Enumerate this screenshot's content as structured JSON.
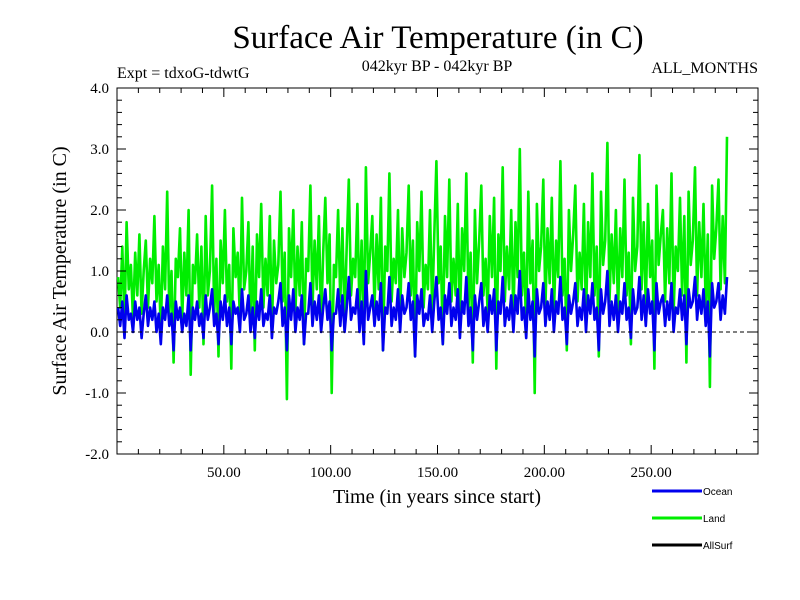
{
  "chart_data": {
    "type": "line",
    "title": "Surface Air Temperature (in C)",
    "subtitle": "042kyr BP - 042kyr BP",
    "left_annotation": "Expt = tdxoG-tdwtG",
    "right_annotation": "ALL_MONTHS",
    "xlabel": "Time (in years since start)",
    "ylabel": "Surface Air Temperature (in C)",
    "xlim": [
      0,
      300
    ],
    "ylim": [
      -2.0,
      4.0
    ],
    "x_ticks": [
      50,
      100,
      150,
      200,
      250
    ],
    "x_tick_labels": [
      "50.00",
      "100.00",
      "150.00",
      "200.00",
      "250.00"
    ],
    "y_ticks": [
      -2,
      -1,
      0,
      1,
      2,
      3,
      4
    ],
    "y_tick_labels": [
      "-2.0",
      "-1.0",
      "0.0",
      "1.0",
      "2.0",
      "3.0",
      "4.0"
    ],
    "zero_line": true,
    "legend_position": "bottom-right",
    "series": [
      {
        "name": "Land",
        "color": "#00ee00",
        "draw_order": 1,
        "x_start": 0.5,
        "x_step": 1.0,
        "trend": {
          "start": 0.75,
          "end": 1.3
        },
        "approx_range": [
          -1.1,
          3.25
        ],
        "values": [
          0.9,
          0.4,
          1.4,
          0.1,
          1.8,
          0.7,
          1.1,
          0.2,
          1.3,
          0.6,
          1.6,
          0.3,
          1.0,
          1.5,
          0.4,
          1.2,
          0.8,
          1.9,
          0.5,
          1.1,
          0.0,
          1.4,
          0.7,
          2.3,
          0.3,
          1.0,
          -0.5,
          1.2,
          0.9,
          1.7,
          0.2,
          1.3,
          0.6,
          2.0,
          -0.7,
          1.1,
          0.8,
          1.6,
          0.4,
          1.4,
          -0.2,
          1.9,
          0.6,
          1.0,
          2.4,
          0.3,
          1.2,
          -0.4,
          1.5,
          0.8,
          2.0,
          0.5,
          1.1,
          -0.6,
          1.7,
          0.9,
          1.3,
          0.2,
          2.2,
          0.7,
          1.0,
          1.8,
          0.1,
          1.4,
          -0.3,
          1.6,
          0.9,
          2.1,
          0.4,
          1.2,
          0.6,
          1.9,
          0.0,
          1.5,
          0.8,
          1.1,
          2.3,
          0.5,
          1.3,
          -1.1,
          1.7,
          0.9,
          2.0,
          0.3,
          1.4,
          0.6,
          1.8,
          -0.2,
          1.2,
          1.0,
          2.4,
          0.4,
          1.5,
          0.7,
          1.9,
          0.1,
          1.3,
          2.2,
          0.8,
          1.6,
          -1.0,
          1.1,
          0.9,
          2.0,
          0.5,
          1.7,
          0.2,
          1.4,
          2.5,
          0.6,
          1.2,
          0.9,
          2.1,
          0.3,
          1.5,
          0.0,
          2.7,
          0.8,
          1.3,
          1.9,
          0.4,
          1.6,
          0.7,
          2.2,
          -0.3,
          1.4,
          1.0,
          2.6,
          0.5,
          1.2,
          0.8,
          2.0,
          0.2,
          1.7,
          0.9,
          1.3,
          2.4,
          0.6,
          1.5,
          -0.4,
          1.8,
          1.0,
          2.3,
          0.4,
          1.1,
          0.7,
          2.0,
          0.3,
          1.6,
          2.8,
          0.8,
          1.4,
          -0.2,
          1.9,
          0.9,
          2.5,
          0.5,
          1.2,
          0.6,
          2.1,
          0.1,
          1.7,
          1.0,
          2.6,
          0.4,
          1.3,
          -0.5,
          2.0,
          0.8,
          1.5,
          2.4,
          0.6,
          1.2,
          0.3,
          1.9,
          0.9,
          2.2,
          -0.6,
          1.6,
          1.0,
          2.7,
          0.5,
          1.4,
          0.7,
          2.0,
          0.2,
          1.8,
          0.9,
          3.0,
          0.6,
          1.3,
          0.0,
          2.3,
          0.8,
          1.5,
          -1.0,
          2.1,
          1.0,
          1.4,
          2.5,
          0.4,
          1.7,
          0.8,
          2.2,
          0.3,
          1.5,
          0.9,
          2.8,
          0.6,
          1.2,
          -0.3,
          2.0,
          1.0,
          1.6,
          2.4,
          0.5,
          1.3,
          0.7,
          2.1,
          0.2,
          1.8,
          0.9,
          2.6,
          0.6,
          1.4,
          -0.4,
          2.3,
          1.1,
          1.5,
          3.1,
          0.5,
          1.6,
          0.8,
          2.0,
          0.3,
          1.7,
          0.9,
          2.5,
          0.6,
          1.3,
          -0.2,
          2.2,
          1.0,
          1.4,
          2.9,
          0.7,
          1.8,
          0.4,
          2.1,
          0.9,
          1.5,
          -0.6,
          2.4,
          1.1,
          1.6,
          2.0,
          0.5,
          1.7,
          0.8,
          2.6,
          0.3,
          1.4,
          1.0,
          2.2,
          0.6,
          1.9,
          -0.5,
          2.3,
          1.1,
          1.5,
          2.7,
          0.6,
          1.8,
          0.9,
          2.1,
          0.4,
          1.6,
          -0.9,
          2.4,
          1.2,
          1.7,
          2.5,
          0.7,
          1.9,
          0.8,
          3.2
        ]
      },
      {
        "name": "Ocean",
        "color": "#0000ee",
        "draw_order": 2,
        "x_start": 0.5,
        "x_step": 1.0,
        "trend": {
          "start": 0.3,
          "end": 0.45
        },
        "approx_range": [
          -0.45,
          1.05
        ],
        "values": [
          0.4,
          0.1,
          0.5,
          -0.1,
          0.6,
          0.2,
          0.3,
          0.0,
          0.5,
          0.2,
          0.4,
          -0.1,
          0.3,
          0.6,
          0.1,
          0.4,
          0.2,
          0.5,
          0.0,
          0.3,
          -0.2,
          0.4,
          0.2,
          0.6,
          0.1,
          0.3,
          -0.3,
          0.5,
          0.2,
          0.4,
          0.0,
          0.3,
          0.1,
          0.6,
          -0.3,
          0.4,
          0.2,
          0.5,
          0.1,
          0.3,
          -0.1,
          0.6,
          0.2,
          0.4,
          0.7,
          0.1,
          0.3,
          -0.2,
          0.5,
          0.2,
          0.6,
          0.1,
          0.4,
          -0.2,
          0.5,
          0.3,
          0.4,
          0.0,
          0.7,
          0.2,
          0.3,
          0.6,
          0.0,
          0.4,
          -0.1,
          0.5,
          0.2,
          0.7,
          0.1,
          0.3,
          0.2,
          0.6,
          -0.1,
          0.4,
          0.3,
          0.5,
          0.8,
          0.1,
          0.4,
          -0.3,
          0.6,
          0.2,
          0.7,
          0.0,
          0.4,
          0.2,
          0.6,
          -0.2,
          0.3,
          0.3,
          0.8,
          0.1,
          0.5,
          0.2,
          0.6,
          0.0,
          0.4,
          0.7,
          0.2,
          0.5,
          -0.3,
          0.3,
          0.3,
          0.7,
          0.1,
          0.6,
          0.0,
          0.4,
          0.9,
          0.2,
          0.4,
          0.3,
          0.7,
          0.0,
          0.5,
          -0.2,
          1.0,
          0.2,
          0.4,
          0.6,
          0.1,
          0.5,
          0.2,
          0.8,
          -0.3,
          0.4,
          0.3,
          0.9,
          0.1,
          0.4,
          0.2,
          0.7,
          0.0,
          0.6,
          0.3,
          0.4,
          0.8,
          0.2,
          0.5,
          -0.4,
          0.6,
          0.3,
          0.7,
          0.1,
          0.3,
          0.2,
          0.6,
          0.0,
          0.5,
          0.9,
          0.2,
          0.4,
          -0.2,
          0.6,
          0.3,
          0.8,
          0.1,
          0.4,
          0.2,
          0.7,
          -0.1,
          0.5,
          0.3,
          0.9,
          0.1,
          0.4,
          -0.3,
          0.6,
          0.2,
          0.5,
          0.8,
          0.1,
          0.4,
          0.0,
          0.6,
          0.3,
          0.7,
          -0.3,
          0.5,
          0.3,
          0.9,
          0.1,
          0.4,
          0.2,
          0.6,
          0.0,
          0.6,
          0.3,
          1.0,
          0.2,
          0.4,
          -0.1,
          0.7,
          0.2,
          0.5,
          -0.4,
          0.7,
          0.3,
          0.4,
          0.8,
          0.1,
          0.5,
          0.2,
          0.7,
          0.0,
          0.5,
          0.3,
          0.9,
          0.2,
          0.4,
          -0.2,
          0.6,
          0.3,
          0.5,
          0.8,
          0.1,
          0.4,
          0.2,
          0.7,
          0.0,
          0.6,
          0.3,
          0.8,
          0.2,
          0.4,
          -0.3,
          0.7,
          0.3,
          0.5,
          1.0,
          0.1,
          0.5,
          0.2,
          0.6,
          0.0,
          0.5,
          0.3,
          0.8,
          0.2,
          0.4,
          -0.1,
          0.7,
          0.3,
          0.4,
          0.9,
          0.2,
          0.6,
          0.1,
          0.7,
          0.3,
          0.5,
          -0.3,
          0.8,
          0.3,
          0.5,
          0.6,
          0.1,
          0.5,
          0.2,
          0.8,
          0.0,
          0.4,
          0.3,
          0.7,
          0.2,
          0.6,
          -0.2,
          0.7,
          0.4,
          0.5,
          0.9,
          0.2,
          0.6,
          0.3,
          0.7,
          0.1,
          0.5,
          -0.4,
          0.8,
          0.4,
          0.5,
          0.8,
          0.2,
          0.6,
          0.3,
          0.9
        ]
      },
      {
        "name": "AllSurf",
        "color": "#000000",
        "draw_order": 0,
        "values": []
      }
    ]
  }
}
